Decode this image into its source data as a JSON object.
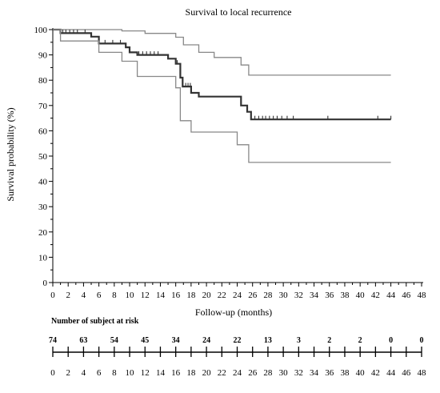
{
  "chart_data": {
    "type": "line",
    "title": "Survival to local recurrence",
    "xlabel": "Follow-up (months)",
    "ylabel": "Survival probability (%)",
    "xlim": [
      0,
      48
    ],
    "ylim": [
      0,
      100
    ],
    "x_ticks": [
      0,
      2,
      4,
      6,
      8,
      10,
      12,
      14,
      16,
      18,
      20,
      22,
      24,
      26,
      28,
      30,
      32,
      34,
      36,
      38,
      40,
      42,
      44,
      46,
      48
    ],
    "y_ticks": [
      0,
      10,
      20,
      30,
      40,
      50,
      60,
      70,
      80,
      90,
      100
    ],
    "grid": false,
    "legend": "none",
    "series": [
      {
        "role": "estimate",
        "color": "#333333",
        "points": [
          [
            0,
            100
          ],
          [
            1,
            100
          ],
          [
            1,
            98.6
          ],
          [
            5,
            98.6
          ],
          [
            5,
            97.2
          ],
          [
            6,
            97.2
          ],
          [
            6,
            94.5
          ],
          [
            9.5,
            94.5
          ],
          [
            9.5,
            93
          ],
          [
            10,
            93
          ],
          [
            10,
            91
          ],
          [
            11,
            91
          ],
          [
            11,
            90
          ],
          [
            15,
            90
          ],
          [
            15,
            88.5
          ],
          [
            16,
            88.5
          ],
          [
            16,
            86.5
          ],
          [
            16.6,
            86.5
          ],
          [
            16.6,
            81
          ],
          [
            16.9,
            81
          ],
          [
            16.9,
            77.5
          ],
          [
            18,
            77.5
          ],
          [
            18,
            75
          ],
          [
            19,
            75
          ],
          [
            19,
            73.5
          ],
          [
            24.5,
            73.5
          ],
          [
            24.5,
            70
          ],
          [
            25.3,
            70
          ],
          [
            25.3,
            67.5
          ],
          [
            25.8,
            67.5
          ],
          [
            25.8,
            64.5
          ],
          [
            44,
            64.5
          ]
        ]
      },
      {
        "role": "upper-ci",
        "color": "#888888",
        "points": [
          [
            0,
            100
          ],
          [
            9,
            100
          ],
          [
            9,
            99.5
          ],
          [
            12,
            99.5
          ],
          [
            12,
            98.5
          ],
          [
            16,
            98.5
          ],
          [
            16,
            97
          ],
          [
            17,
            97
          ],
          [
            17,
            94
          ],
          [
            19,
            94
          ],
          [
            19,
            91
          ],
          [
            21,
            91
          ],
          [
            21,
            89
          ],
          [
            24.5,
            89
          ],
          [
            24.5,
            86
          ],
          [
            25.5,
            86
          ],
          [
            25.5,
            82
          ],
          [
            44,
            82
          ]
        ]
      },
      {
        "role": "lower-ci",
        "color": "#888888",
        "points": [
          [
            0,
            100
          ],
          [
            1,
            100
          ],
          [
            1,
            95.5
          ],
          [
            6,
            95.5
          ],
          [
            6,
            91
          ],
          [
            9,
            91
          ],
          [
            9,
            87.5
          ],
          [
            11,
            87.5
          ],
          [
            11,
            81.5
          ],
          [
            16,
            81.5
          ],
          [
            16,
            77
          ],
          [
            16.6,
            77
          ],
          [
            16.6,
            64
          ],
          [
            18,
            64
          ],
          [
            18,
            59.5
          ],
          [
            24,
            59.5
          ],
          [
            24,
            54.5
          ],
          [
            25.5,
            54.5
          ],
          [
            25.5,
            47.5
          ],
          [
            44,
            47.5
          ]
        ]
      }
    ],
    "censor_marks": [
      1.3,
      1.7,
      2.2,
      2.7,
      3.2,
      4.2,
      6.8,
      7.8,
      8.8,
      11.2,
      11.7,
      12.2,
      12.7,
      13.2,
      13.7,
      16.2,
      17.3,
      17.6,
      17.9,
      26.3,
      26.8,
      27.3,
      27.7,
      28.2,
      28.7,
      29.2,
      29.8,
      30.5,
      31.3,
      35.8,
      42.3,
      44
    ]
  },
  "risk_table": {
    "title": "Number of subject at risk",
    "times": [
      0,
      4,
      8,
      12,
      16,
      20,
      24,
      28,
      32,
      36,
      40,
      44,
      48
    ],
    "counts": [
      "74",
      "63",
      "54",
      "45",
      "34",
      "24",
      "22",
      "13",
      "3",
      "2",
      "2",
      "0",
      "0"
    ]
  }
}
